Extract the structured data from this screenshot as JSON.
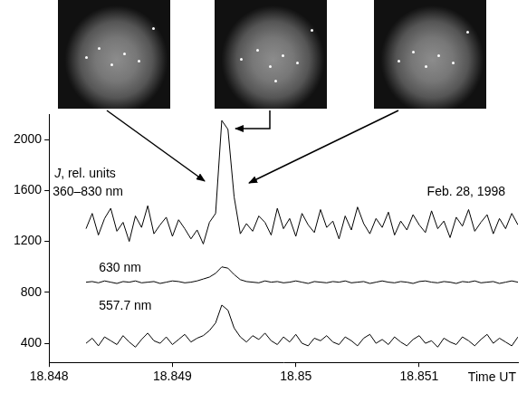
{
  "chart_data": {
    "type": "line",
    "title": "Feb. 28, 1998",
    "xlabel": "Time UT",
    "ylabel": "J, rel. units",
    "x": [
      18.8483,
      18.84835,
      18.8484,
      18.84845,
      18.8485,
      18.84855,
      18.8486,
      18.84865,
      18.8487,
      18.84875,
      18.8488,
      18.84885,
      18.8489,
      18.84895,
      18.849,
      18.84905,
      18.8491,
      18.84915,
      18.8492,
      18.84925,
      18.8493,
      18.84935,
      18.8494,
      18.84945,
      18.8495,
      18.84955,
      18.8496,
      18.84965,
      18.8497,
      18.84975,
      18.8498,
      18.84985,
      18.8499,
      18.84995,
      18.85,
      18.85005,
      18.8501,
      18.85015,
      18.8502,
      18.85025,
      18.8503,
      18.85035,
      18.8504,
      18.85045,
      18.8505,
      18.85055,
      18.8506,
      18.85065,
      18.8507,
      18.85075,
      18.8508,
      18.85085,
      18.8509,
      18.85095,
      18.851,
      18.85105,
      18.8511,
      18.85115,
      18.8512,
      18.85125,
      18.8513,
      18.85135,
      18.8514,
      18.85145,
      18.8515,
      18.85155,
      18.8516,
      18.85165,
      18.8517,
      18.85175,
      18.8518
    ],
    "series": [
      {
        "name": "360–830 nm",
        "color": "#000000",
        "values": [
          1300,
          1420,
          1250,
          1380,
          1460,
          1280,
          1350,
          1200,
          1400,
          1310,
          1480,
          1260,
          1330,
          1390,
          1240,
          1370,
          1300,
          1220,
          1290,
          1180,
          1350,
          1420,
          2150,
          2080,
          1550,
          1260,
          1340,
          1280,
          1400,
          1350,
          1250,
          1460,
          1300,
          1380,
          1240,
          1420,
          1330,
          1270,
          1450,
          1310,
          1360,
          1220,
          1400,
          1290,
          1470,
          1340,
          1260,
          1380,
          1310,
          1430,
          1250,
          1360,
          1290,
          1410,
          1330,
          1270,
          1440,
          1300,
          1360,
          1230,
          1390,
          1320,
          1450,
          1280,
          1350,
          1410,
          1260,
          1380,
          1300,
          1420,
          1330
        ]
      },
      {
        "name": "630 nm",
        "color": "#000000",
        "values": [
          880,
          885,
          875,
          890,
          880,
          870,
          885,
          880,
          890,
          875,
          880,
          885,
          870,
          880,
          890,
          885,
          875,
          880,
          890,
          905,
          920,
          950,
          1000,
          990,
          940,
          900,
          885,
          880,
          875,
          890,
          880,
          885,
          875,
          880,
          890,
          880,
          870,
          885,
          880,
          875,
          885,
          880,
          890,
          875,
          880,
          885,
          870,
          880,
          890,
          880,
          875,
          885,
          880,
          870,
          885,
          890,
          880,
          875,
          885,
          880,
          870,
          885,
          880,
          890,
          875,
          880,
          885,
          870,
          880,
          890,
          880
        ]
      },
      {
        "name": "557.7 nm",
        "color": "#000000",
        "values": [
          400,
          440,
          380,
          450,
          420,
          390,
          460,
          410,
          370,
          430,
          480,
          420,
          400,
          450,
          390,
          430,
          470,
          410,
          440,
          460,
          500,
          560,
          700,
          660,
          520,
          450,
          410,
          460,
          430,
          480,
          420,
          390,
          450,
          410,
          470,
          400,
          380,
          440,
          420,
          460,
          410,
          390,
          450,
          420,
          380,
          440,
          470,
          400,
          430,
          390,
          450,
          410,
          380,
          430,
          460,
          400,
          420,
          370,
          440,
          410,
          390,
          450,
          420,
          380,
          430,
          470,
          400,
          440,
          410,
          380,
          450
        ]
      }
    ],
    "xlim": [
      18.848,
      18.8518
    ],
    "xticks": [
      18.848,
      18.849,
      18.85,
      18.851
    ],
    "ylim": [
      250,
      2200
    ],
    "yticks": [
      400,
      800,
      1200,
      1600,
      2000
    ],
    "grid": false
  }
}
